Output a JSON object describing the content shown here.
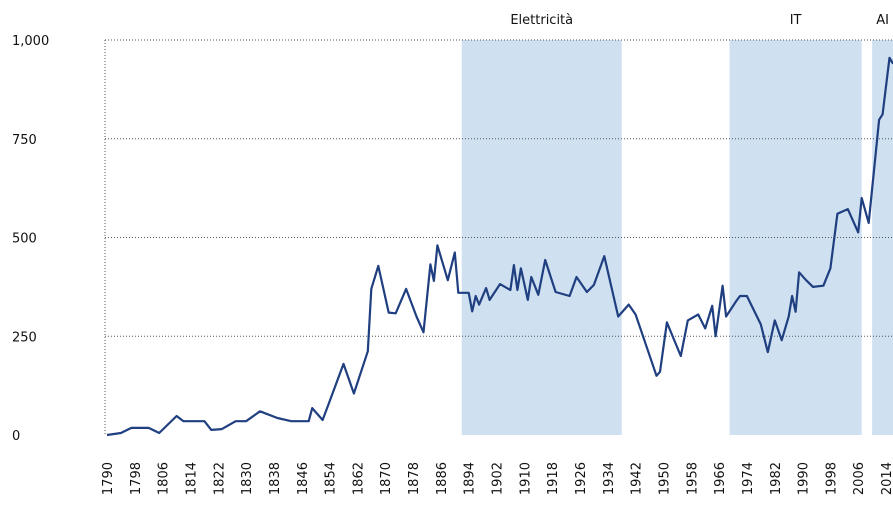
{
  "chart_data": {
    "type": "line",
    "color": "#1f3f80",
    "band_color": "#cfe0f0",
    "bands": [
      {
        "label": "Elettricità",
        "start": 1892,
        "end": 1938
      },
      {
        "label": "IT",
        "start": 1969,
        "end": 2007
      },
      {
        "label": "AI",
        "start": 2010,
        "end": 2016
      }
    ],
    "x": [
      1790,
      1794,
      1797,
      1802,
      1805,
      1810,
      1812,
      1818,
      1820,
      1823,
      1827,
      1830,
      1834,
      1839,
      1843,
      1848,
      1849,
      1852,
      1854,
      1858,
      1861,
      1865,
      1866,
      1868,
      1871,
      1873,
      1876,
      1879,
      1881,
      1883,
      1884,
      1885,
      1888,
      1890,
      1891,
      1894,
      1895,
      1896,
      1897,
      1899,
      1900,
      1903,
      1906,
      1907,
      1908,
      1909,
      1911,
      1912,
      1914,
      1916,
      1919,
      1923,
      1925,
      1928,
      1930,
      1933,
      1937,
      1940,
      1942,
      1948,
      1949,
      1951,
      1955,
      1957,
      1960,
      1962,
      1964,
      1965,
      1967,
      1968,
      1971,
      1972,
      1974,
      1978,
      1980,
      1982,
      1984,
      1986,
      1987,
      1988,
      1989,
      1991,
      1993,
      1996,
      1998,
      2000,
      2003,
      2006,
      2007,
      2009,
      2012,
      2013,
      2015,
      2016
    ],
    "series": [
      {
        "color": "#1f3f80",
        "values": [
          0,
          5,
          18,
          18,
          5,
          48,
          35,
          35,
          13,
          15,
          35,
          35,
          60,
          43,
          35,
          35,
          68,
          38,
          85,
          180,
          105,
          212,
          370,
          428,
          310,
          308,
          370,
          300,
          260,
          432,
          390,
          480,
          392,
          462,
          360,
          360,
          313,
          352,
          330,
          372,
          342,
          382,
          367,
          430,
          367,
          422,
          342,
          400,
          355,
          443,
          362,
          352,
          400,
          362,
          380,
          453,
          300,
          330,
          305,
          150,
          160,
          285,
          200,
          290,
          305,
          270,
          327,
          250,
          378,
          300,
          340,
          352,
          352,
          280,
          210,
          290,
          240,
          300,
          352,
          312,
          412,
          392,
          375,
          378,
          422,
          560,
          572,
          513,
          600,
          537,
          798,
          812,
          955,
          940
        ]
      }
    ],
    "xlim": [
      1790,
      2016
    ],
    "ylim": [
      0,
      1000
    ],
    "xticks": [
      1790,
      1798,
      1806,
      1814,
      1822,
      1830,
      1838,
      1846,
      1854,
      1862,
      1870,
      1878,
      1886,
      1894,
      1902,
      1910,
      1918,
      1926,
      1934,
      1942,
      1950,
      1958,
      1966,
      1974,
      1982,
      1990,
      1998,
      2006,
      2014
    ],
    "yticks": [
      0,
      250,
      500,
      750,
      {
        "value": 1000,
        "label": "1,000"
      }
    ],
    "grid": true
  }
}
